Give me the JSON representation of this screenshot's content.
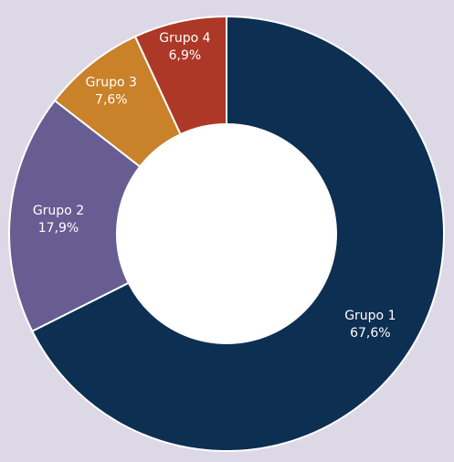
{
  "chart_data": {
    "type": "pie",
    "donut": true,
    "title": "",
    "labels": [
      "Grupo 1",
      "Grupo 2",
      "Grupo 3",
      "Grupo 4"
    ],
    "values": [
      67.6,
      17.9,
      7.6,
      6.9
    ],
    "value_labels": [
      "67,6%",
      "17,9%",
      "7,6%",
      "6,9%"
    ],
    "colors": [
      "#0d2f52",
      "#675d93",
      "#c9812a",
      "#ad3827"
    ],
    "legend": "none"
  },
  "background_color": "#dcd8e6"
}
